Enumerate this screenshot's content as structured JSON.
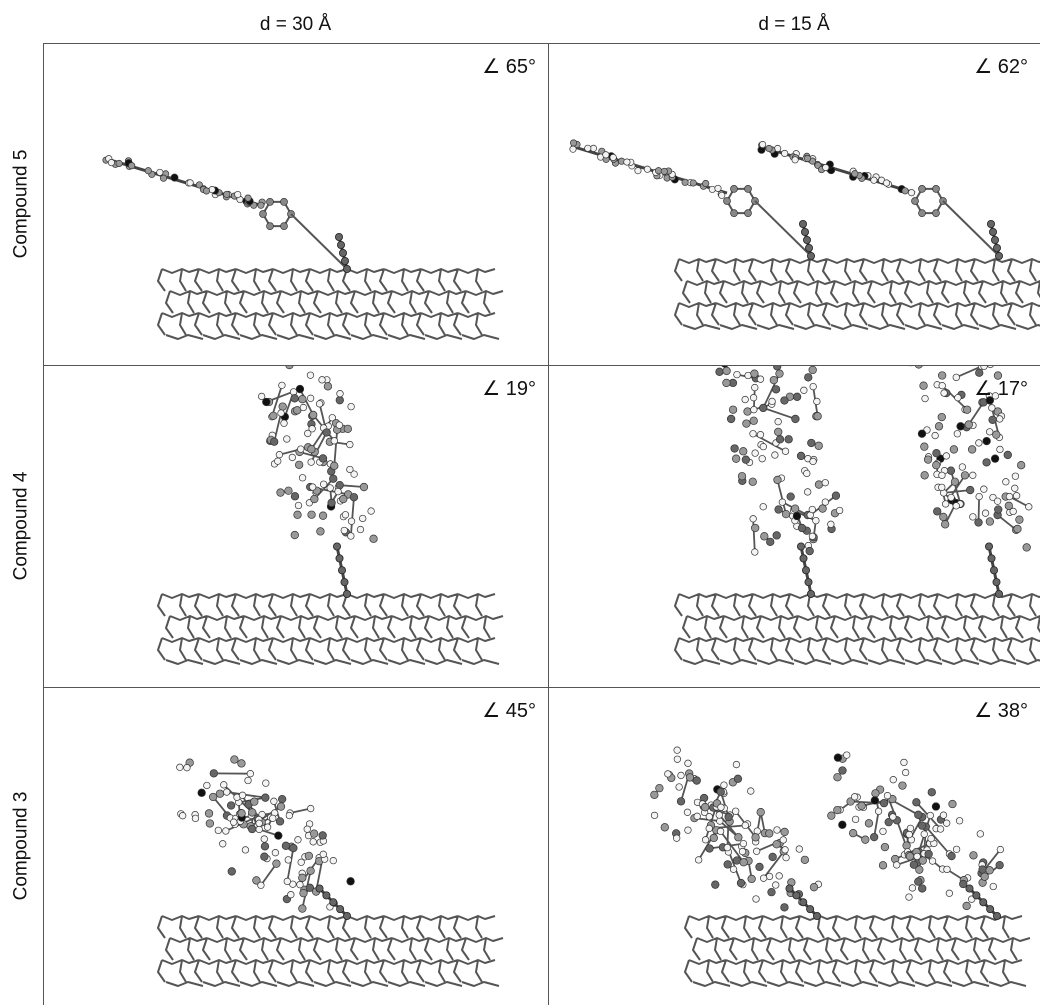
{
  "figure": {
    "columns": [
      "d = 30 Å",
      "d = 15 Å"
    ],
    "rows": [
      {
        "label": "Compound 5",
        "cells": [
          {
            "angle": "∠ 65°",
            "molecule": "planar-tilted",
            "copies": 1
          },
          {
            "angle": "∠ 62°",
            "molecule": "planar-tilted",
            "copies": 2
          }
        ]
      },
      {
        "label": "Compound 4",
        "cells": [
          {
            "angle": "∠ 19°",
            "molecule": "bulky-upright",
            "copies": 1
          },
          {
            "angle": "∠ 17°",
            "molecule": "bulky-upright",
            "copies": 2
          }
        ]
      },
      {
        "label": "Compound 3",
        "cells": [
          {
            "angle": "∠ 45°",
            "molecule": "bulky-tilted",
            "copies": 1
          },
          {
            "angle": "∠ 38°",
            "molecule": "bulky-tilted",
            "copies": 2
          }
        ]
      }
    ]
  }
}
